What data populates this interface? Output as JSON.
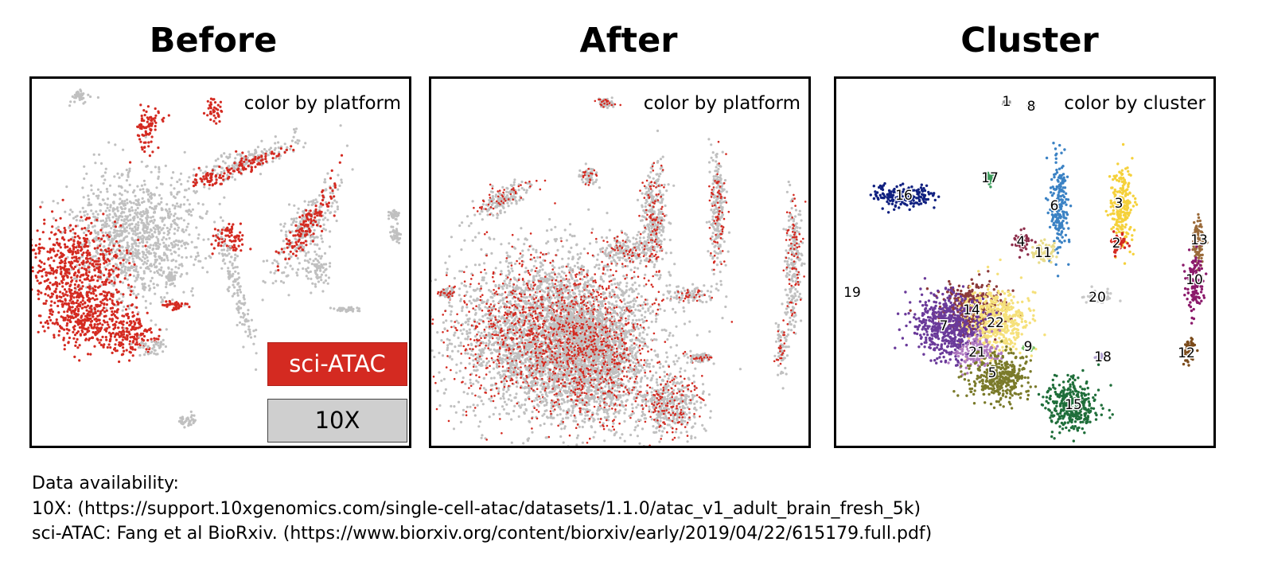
{
  "colors": {
    "sci_atac": "#d42a21",
    "tenx": "#c0c0c0"
  },
  "chart_data": [
    {
      "type": "scatter",
      "title": "Before",
      "annotation": "color by platform",
      "legend": {
        "position": "bottom-right",
        "entries": [
          "sci-ATAC",
          "10X"
        ]
      },
      "series": [
        {
          "name": "sci-ATAC",
          "color": "#d42a21"
        },
        {
          "name": "10X",
          "color": "#c0c0c0"
        }
      ],
      "grid": false
    },
    {
      "type": "scatter",
      "title": "After",
      "annotation": "color by platform",
      "grid": false
    },
    {
      "type": "scatter",
      "title": "Cluster",
      "annotation": "color by cluster",
      "cluster_labels": [
        "1",
        "2",
        "3",
        "4",
        "5",
        "6",
        "7",
        "8",
        "9",
        "10",
        "11",
        "12",
        "13",
        "14",
        "15",
        "16",
        "17",
        "18",
        "19",
        "20",
        "21",
        "22"
      ],
      "grid": false
    }
  ],
  "footnote": {
    "heading": "Data availability:",
    "line1": "10X: (https://support.10xgenomics.com/single-cell-atac/datasets/1.1.0/atac_v1_adult_brain_fresh_5k)",
    "line2": "sci-ATAC: Fang et al BioRxiv. (https://www.biorxiv.org/content/biorxiv/early/2019/04/22/615179.full.pdf)"
  }
}
